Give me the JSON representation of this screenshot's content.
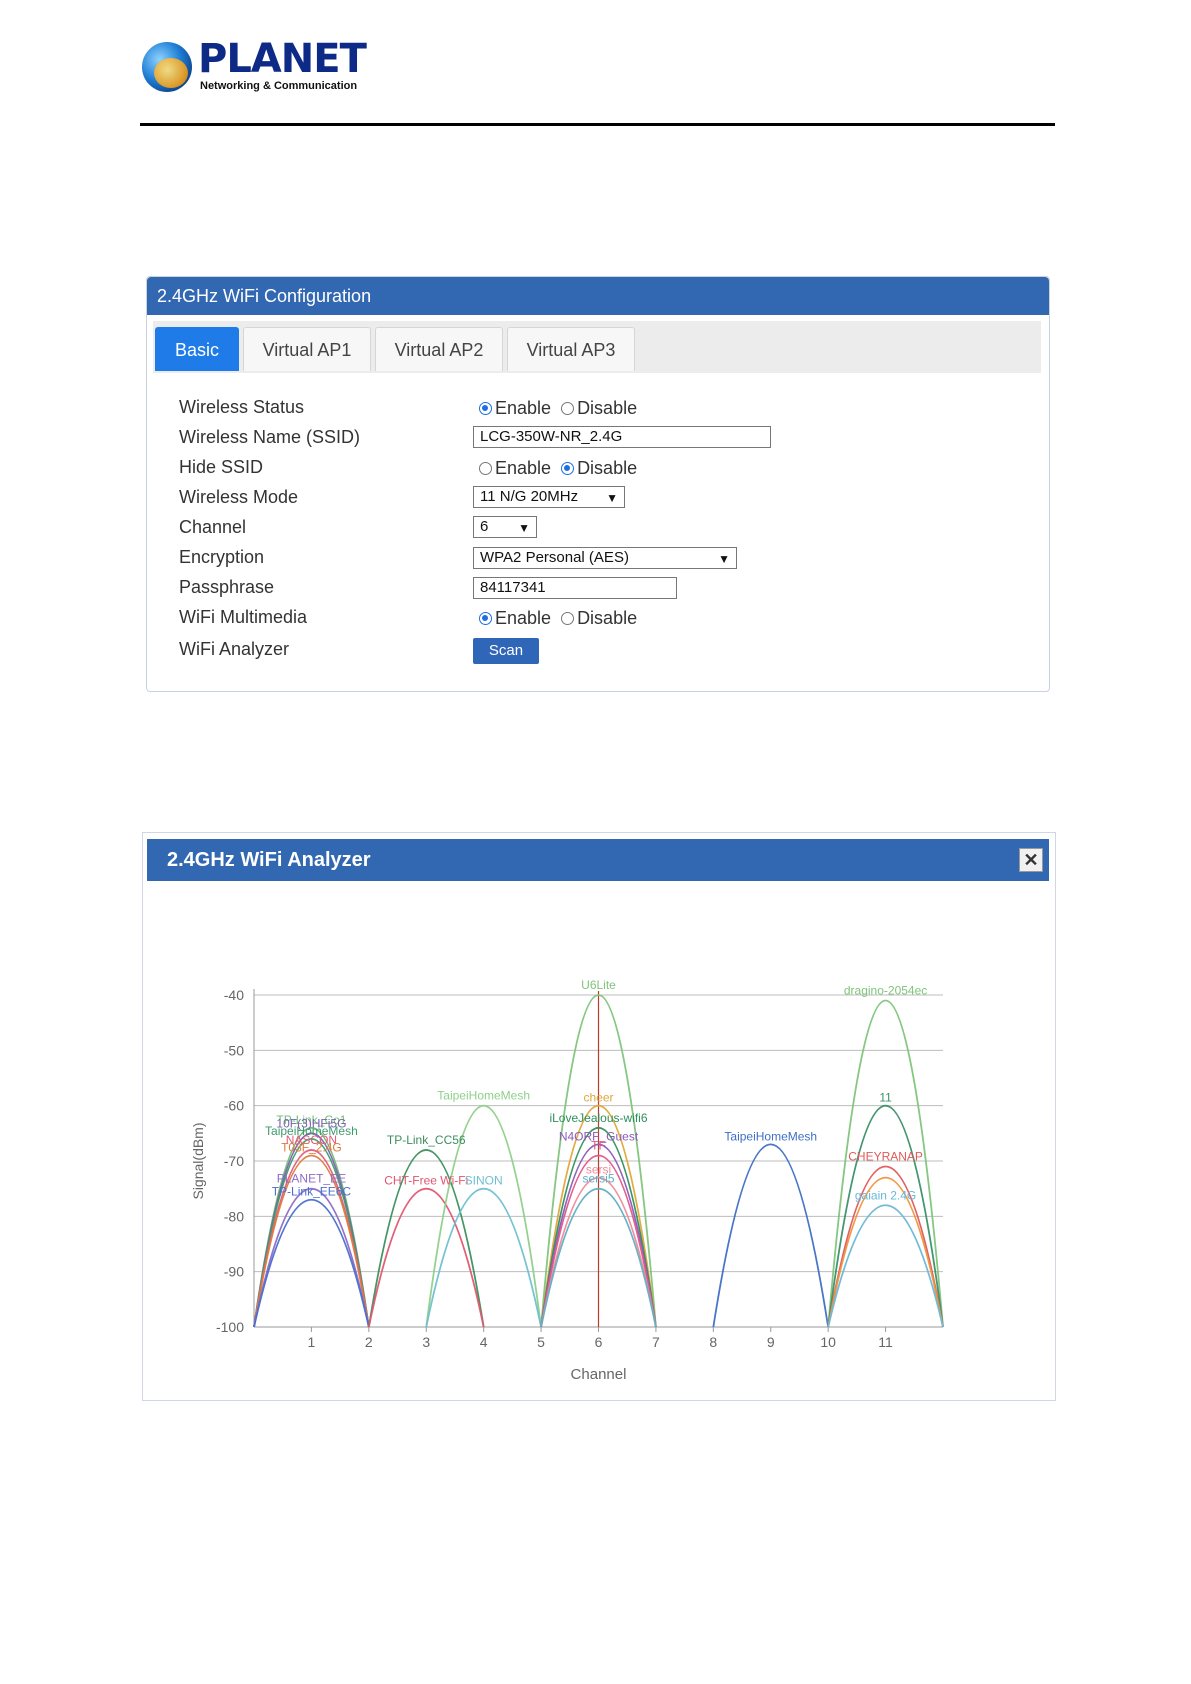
{
  "logo": {
    "name": "PLANET",
    "tagline": "Networking & Communication"
  },
  "config": {
    "title": "2.4GHz WiFi Configuration",
    "tabs": [
      {
        "label": "Basic",
        "active": true
      },
      {
        "label": "Virtual AP1",
        "active": false
      },
      {
        "label": "Virtual AP2",
        "active": false
      },
      {
        "label": "Virtual AP3",
        "active": false
      }
    ],
    "rows": {
      "wireless_status": {
        "label": "Wireless Status",
        "enable": "Enable",
        "disable": "Disable",
        "selected": "enable"
      },
      "ssid": {
        "label": "Wireless Name (SSID)",
        "value": "LCG-350W-NR_2.4G"
      },
      "hide_ssid": {
        "label": "Hide SSID",
        "enable": "Enable",
        "disable": "Disable",
        "selected": "disable"
      },
      "mode": {
        "label": "Wireless Mode",
        "value": "11 N/G 20MHz"
      },
      "channel": {
        "label": "Channel",
        "value": "6"
      },
      "encryption": {
        "label": "Encryption",
        "value": "WPA2 Personal (AES)"
      },
      "passphrase": {
        "label": "Passphrase",
        "value": "84117341"
      },
      "wmm": {
        "label": "WiFi Multimedia",
        "enable": "Enable",
        "disable": "Disable",
        "selected": "enable"
      },
      "analyzer": {
        "label": "WiFi Analyzer",
        "button": "Scan"
      }
    }
  },
  "analyzer": {
    "title": "2.4GHz WiFi Analyzer",
    "close_icon": "close-icon"
  },
  "chart_data": {
    "type": "line",
    "xlabel": "Channel",
    "ylabel": "Signal(dBm)",
    "x_ticks": [
      1,
      2,
      3,
      4,
      5,
      6,
      7,
      8,
      9,
      10,
      11
    ],
    "y_ticks": [
      -40,
      -50,
      -60,
      -70,
      -80,
      -90,
      -100
    ],
    "xlim": [
      0,
      12
    ],
    "ylim": [
      -100,
      -40
    ],
    "grid": true,
    "current_channel": 6,
    "networks": [
      {
        "ssid": "TP-Link_Co1",
        "channel": 1,
        "signal": -64,
        "color": "#6fbf73"
      },
      {
        "ssid": "10F(3)HFi5G",
        "channel": 1,
        "signal": -65,
        "color": "#7b5fb0"
      },
      {
        "ssid": "TaipeiHomeMesh",
        "channel": 1,
        "signal": -66,
        "color": "#3e9b6c"
      },
      {
        "ssid": "NASCON",
        "channel": 1,
        "signal": -68,
        "color": "#e4587a"
      },
      {
        "ssid": "T03F_2.4G",
        "channel": 1,
        "signal": -69,
        "color": "#e07a3c"
      },
      {
        "ssid": "PLANET_EE",
        "channel": 1,
        "signal": -75,
        "color": "#8c6cc7"
      },
      {
        "ssid": "TP-Link_EE6C",
        "channel": 1,
        "signal": -77,
        "color": "#4a6fd0"
      },
      {
        "ssid": "TP-Link_CC56",
        "channel": 3,
        "signal": -68,
        "color": "#3c8f5e"
      },
      {
        "ssid": "CHT-Free Wi-Fi",
        "channel": 3,
        "signal": -75,
        "color": "#e0566f"
      },
      {
        "ssid": "TaipeiHomeMesh",
        "channel": 4,
        "signal": -60,
        "color": "#8fd08a"
      },
      {
        "ssid": "SINON",
        "channel": 4,
        "signal": -75,
        "color": "#6fc0d0"
      },
      {
        "ssid": "U6Lite",
        "channel": 6,
        "signal": -40,
        "color": "#7fc47a"
      },
      {
        "ssid": "cheer",
        "channel": 6,
        "signal": -60,
        "color": "#e0a63c"
      },
      {
        "ssid": "iLoveJealous-wifi6",
        "channel": 6,
        "signal": -64,
        "color": "#2f8f5c"
      },
      {
        "ssid": "N4ORF_Guest",
        "channel": 6,
        "signal": -67,
        "color": "#8a5ab8"
      },
      {
        "ssid": "TF",
        "channel": 6,
        "signal": -69,
        "color": "#e0568a"
      },
      {
        "ssid": "sersi",
        "channel": 6,
        "signal": -73,
        "color": "#f08a9a"
      },
      {
        "ssid": "sersi5",
        "channel": 6,
        "signal": -75,
        "color": "#5fb0c4"
      },
      {
        "ssid": "TaipeiHomeMesh",
        "channel": 9,
        "signal": -67,
        "color": "#3f6fc4"
      },
      {
        "ssid": "dragino-2054ec",
        "channel": 11,
        "signal": -41,
        "color": "#7fc47a"
      },
      {
        "ssid": "11",
        "channel": 11,
        "signal": -60,
        "color": "#3a8f6a"
      },
      {
        "ssid": "CHEYRANAP",
        "channel": 11,
        "signal": -71,
        "color": "#e05a5a"
      },
      {
        "ssid": "",
        "channel": 11,
        "signal": -73,
        "color": "#f0953c"
      },
      {
        "ssid": "gaiain 2.4G",
        "channel": 11,
        "signal": -78,
        "color": "#6ab8d8"
      }
    ]
  }
}
